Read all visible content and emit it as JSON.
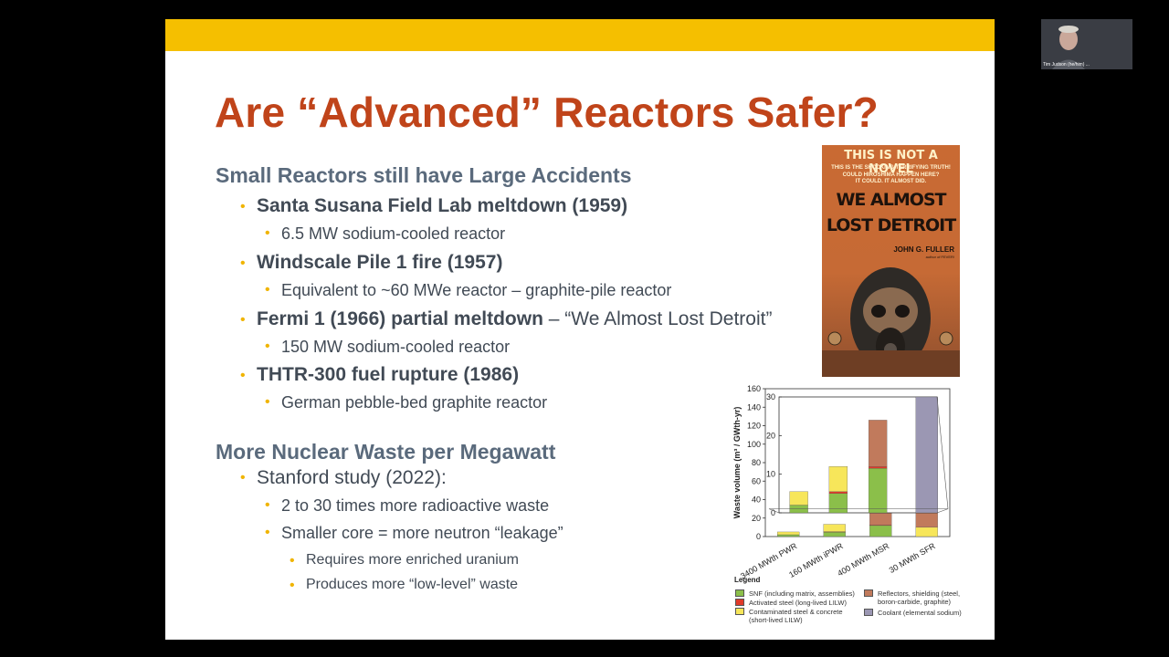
{
  "slide": {
    "title": "Are “Advanced” Reactors Safer?",
    "section1": {
      "heading": "Small Reactors still have Large Accidents",
      "items": [
        {
          "label": "Santa Susana Field Lab meltdown (1959)",
          "sub": "6.5 MW sodium-cooled reactor"
        },
        {
          "label": "Windscale Pile 1 fire (1957)",
          "sub": "Equivalent to ~60 MWe reactor – graphite-pile reactor"
        },
        {
          "label": "Fermi 1 (1966) partial meltdown",
          "suffix": " – “We Almost Lost Detroit”",
          "sub": "150 MW sodium-cooled reactor"
        },
        {
          "label": "THTR-300 fuel rupture (1986)",
          "sub": "German pebble-bed graphite reactor"
        }
      ]
    },
    "section2": {
      "heading": "More Nuclear Waste per Megawatt",
      "item": "Stanford study (2022):",
      "subs": [
        "2 to 30 times more radioactive waste",
        "Smaller core = more neutron “leakage”"
      ],
      "subsubs": [
        "Requires more enriched uranium",
        "Produces more “low-level” waste"
      ]
    },
    "book": {
      "line1": "THIS IS NOT A NOVEL",
      "line2": "THIS IS THE SHOCKING,TERRIFYING TRUTH!",
      "line3": "COULD HIROSHIMA HAPPEN HERE?",
      "line4": "IT COULD. IT ALMOST DID.",
      "title1": "WE ALMOST",
      "title2": "LOST DETROIT",
      "author": "JOHN G. FULLER",
      "author_note": "author of FEVER!"
    },
    "legend": {
      "title": "Legend",
      "items": [
        {
          "label": "SNF (including matrix, assemblies)",
          "color": "#8bbf4a"
        },
        {
          "label": "Activated steel (long-lived LILW)",
          "color": "#e03a2a"
        },
        {
          "label": "Contaminated steel & concrete (short-lived LILW)",
          "color": "#f7e65a"
        },
        {
          "label": "Reflectors, shielding (steel, boron-carbide, graphite)",
          "color": "#c17a5c"
        },
        {
          "label": "Coolant (elemental sodium)",
          "color": "#9b97b3"
        }
      ]
    }
  },
  "chart_data": {
    "type": "bar",
    "stacked": true,
    "ylabel": "Waste volume (m³ / GWth-yr)",
    "ylim": [
      0,
      160
    ],
    "yticks": [
      0,
      20,
      40,
      60,
      80,
      100,
      120,
      140,
      160
    ],
    "inset_ylim": [
      0,
      30
    ],
    "inset_yticks": [
      0,
      10,
      20,
      30
    ],
    "categories": [
      "3400 MWth PWR",
      "160 MWth iPWR",
      "400 MWth MSR",
      "30 MWth SFR"
    ],
    "series": [
      {
        "name": "SNF (including matrix, assemblies)",
        "color": "#8bbf4a",
        "values": [
          2,
          5,
          12,
          0
        ]
      },
      {
        "name": "Activated steel (long-lived LILW)",
        "color": "#e03a2a",
        "values": [
          0,
          0.3,
          0.5,
          0
        ]
      },
      {
        "name": "Contaminated steel & concrete (short-lived LILW)",
        "color": "#f7e65a",
        "values": [
          3,
          8,
          0,
          10
        ]
      },
      {
        "name": "Reflectors, shielding (steel, boron-carbide, graphite)",
        "color": "#c17a5c",
        "values": [
          0,
          0,
          13,
          25
        ]
      },
      {
        "name": "Coolant (elemental sodium)",
        "color": "#9b97b3",
        "values": [
          0,
          0,
          0,
          115
        ]
      }
    ],
    "inset_series": [
      {
        "name": "SNF (including matrix, assemblies)",
        "values": [
          2,
          5,
          11.5,
          2
        ]
      },
      {
        "name": "Activated steel (long-lived LILW)",
        "values": [
          0,
          0.5,
          0.5,
          0
        ]
      },
      {
        "name": "Contaminated steel & concrete (short-lived LILW)",
        "values": [
          3.5,
          6.5,
          0,
          7
        ]
      },
      {
        "name": "Reflectors, shielding (steel, boron-carbide, graphite)",
        "values": [
          0,
          0,
          12,
          21
        ]
      }
    ]
  },
  "video": {
    "participant_name": "Tim Judson (he/him) ..."
  }
}
